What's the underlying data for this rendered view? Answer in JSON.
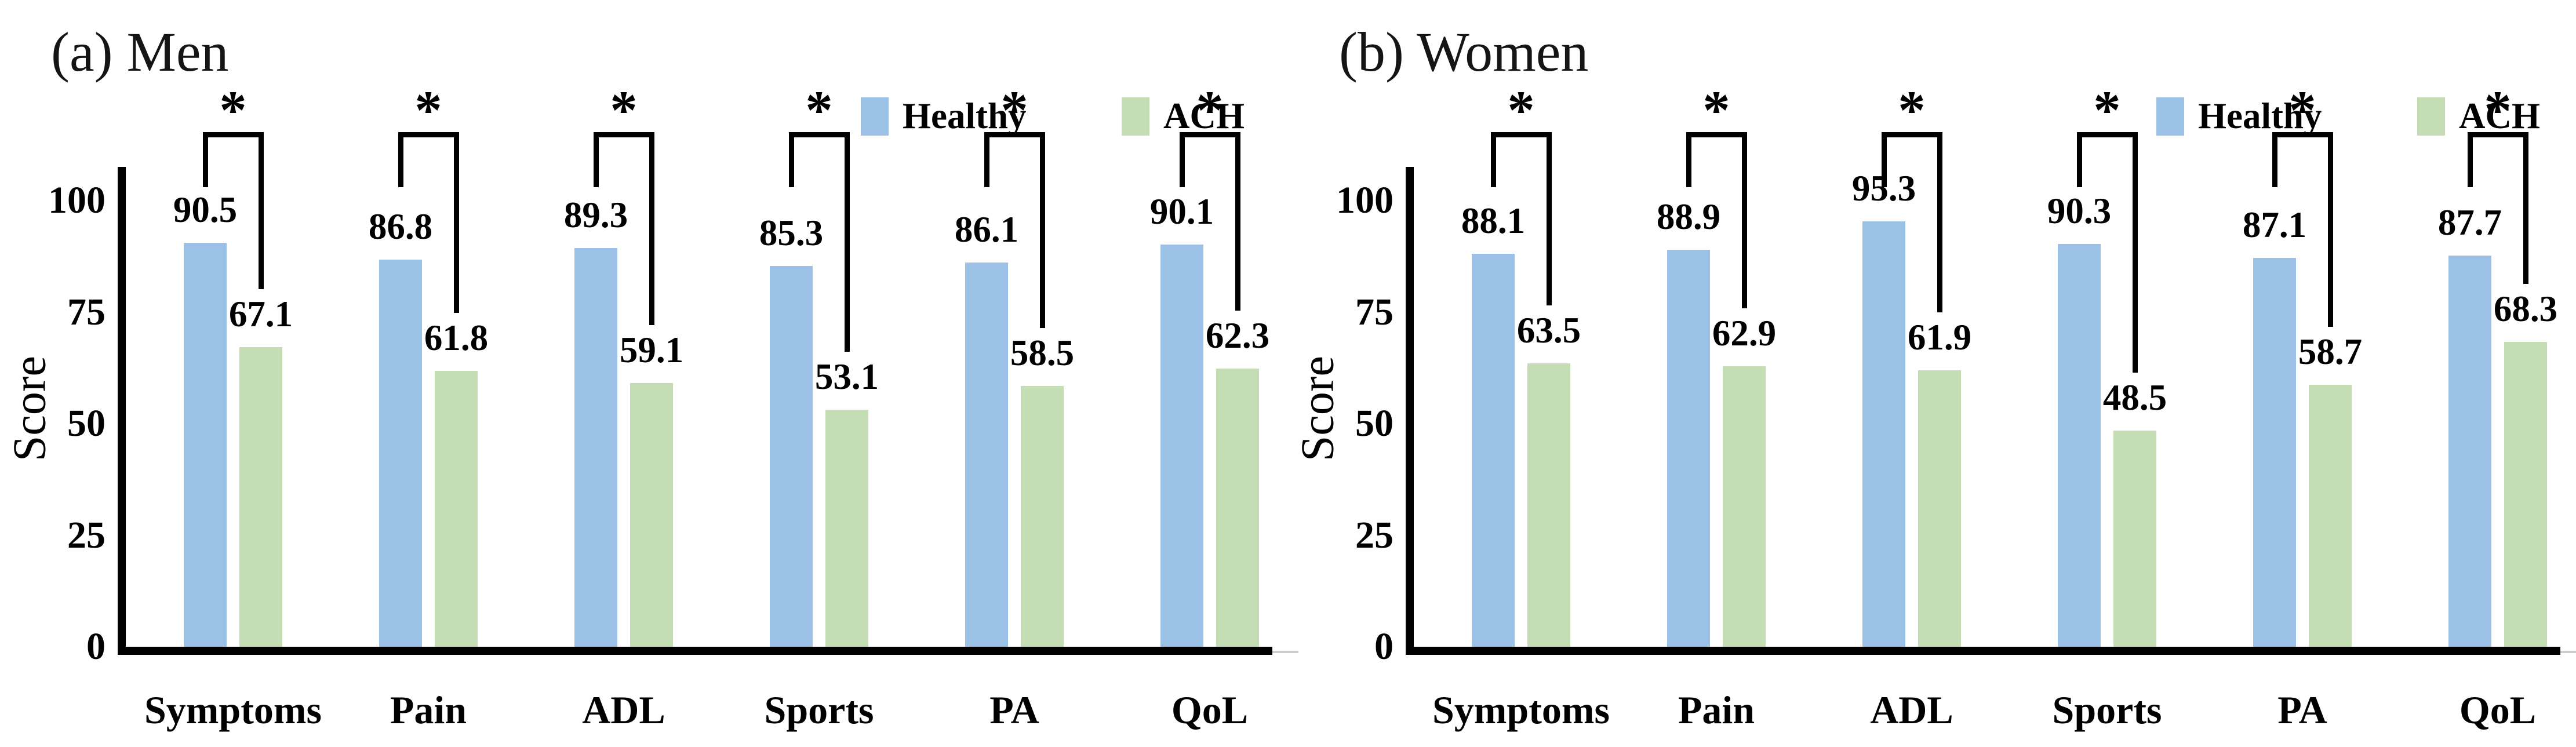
{
  "chart_data": [
    {
      "type": "bar",
      "title": "(a) Men",
      "ylabel": "Score",
      "categories": [
        "Symptoms",
        "Pain",
        "ADL",
        "Sports",
        "PA",
        "QoL"
      ],
      "series": [
        {
          "name": "Healthy",
          "color": "#9BC2E6",
          "values": [
            90.5,
            86.8,
            89.3,
            85.3,
            86.1,
            90.1
          ]
        },
        {
          "name": "ACH",
          "color": "#C5DDB4",
          "values": [
            67.1,
            61.8,
            59.1,
            53.1,
            58.5,
            62.3
          ]
        }
      ],
      "significance": [
        "*",
        "*",
        "*",
        "*",
        "*",
        "*"
      ],
      "yticks": [
        0,
        25,
        50,
        75,
        100
      ],
      "ylim": [
        0,
        112
      ],
      "legend_position": "top-right",
      "grid": false
    },
    {
      "type": "bar",
      "title": "(b) Women",
      "ylabel": "Score",
      "categories": [
        "Symptoms",
        "Pain",
        "ADL",
        "Sports",
        "PA",
        "QoL"
      ],
      "series": [
        {
          "name": "Healthy",
          "color": "#9BC2E6",
          "values": [
            88.1,
            88.9,
            95.3,
            90.3,
            87.1,
            87.7
          ]
        },
        {
          "name": "ACH",
          "color": "#C5DDB4",
          "values": [
            63.5,
            62.9,
            61.9,
            48.5,
            58.7,
            68.3
          ]
        }
      ],
      "significance": [
        "*",
        "*",
        "*",
        "*",
        "*",
        "*"
      ],
      "yticks": [
        0,
        25,
        50,
        75,
        100
      ],
      "ylim": [
        0,
        112
      ],
      "legend_position": "top-right",
      "grid": false
    }
  ],
  "style": {
    "axis_color": "#000000",
    "baseline_extension_color": "#cdcdcd",
    "text_color": "#000000"
  }
}
